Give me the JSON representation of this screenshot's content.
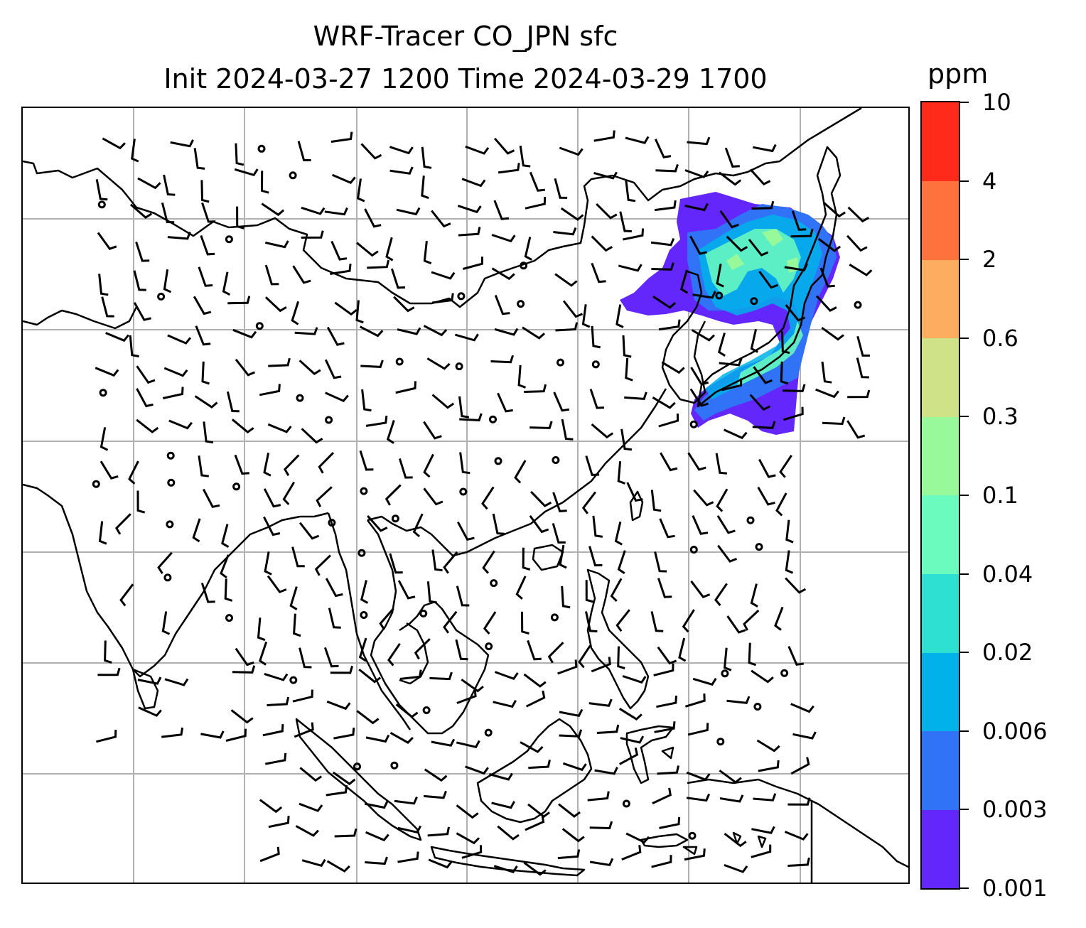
{
  "title": {
    "line1": "WRF-Tracer CO_JPN sfc",
    "line2": "Init 2024-03-27 1200 Time 2024-03-29 1700"
  },
  "colorbar": {
    "unit": "ppm",
    "ticks": [
      "0.001",
      "0.003",
      "0.006",
      "0.02",
      "0.04",
      "0.1",
      "0.3",
      "0.6",
      "2",
      "4",
      "10"
    ],
    "colors": [
      "#6427fb",
      "#3173f6",
      "#00b1ea",
      "#2de0d2",
      "#6bfbbe",
      "#97f99a",
      "#cfe287",
      "#fcad5f",
      "#ff713d",
      "#ff2a19"
    ]
  },
  "map": {
    "gridlines": true,
    "coastline_color": "#000000",
    "grid_color": "#b0b0b0",
    "wind_barbs": true
  }
}
